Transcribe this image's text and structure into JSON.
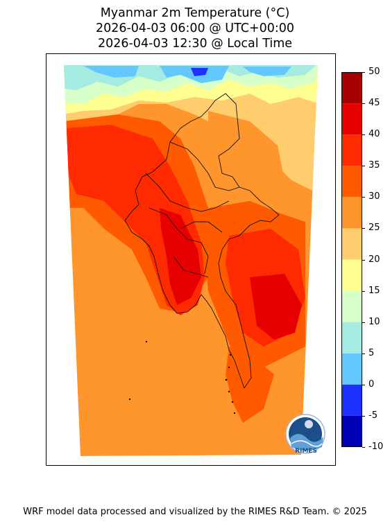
{
  "title": {
    "line1": "Myanmar 2m Temperature (°C)",
    "line2": "2026-04-03 06:00 @ UTC+00:00",
    "line3": "2026-04-03 12:30 @ Local Time"
  },
  "colorbar": {
    "ticks": [
      "50",
      "45",
      "40",
      "35",
      "30",
      "25",
      "20",
      "15",
      "10",
      "5",
      "0",
      "-5",
      "-10"
    ],
    "bins_top_to_bottom": [
      {
        "range": "45 to 50",
        "color": "#a50000"
      },
      {
        "range": "40 to 45",
        "color": "#e60000"
      },
      {
        "range": "35 to 40",
        "color": "#ff2a00"
      },
      {
        "range": "30 to 35",
        "color": "#ff5a00"
      },
      {
        "range": "25 to 30",
        "color": "#ff962d"
      },
      {
        "range": "20 to 25",
        "color": "#ffcd6e"
      },
      {
        "range": "15 to 20",
        "color": "#ffff91"
      },
      {
        "range": "10 to 15",
        "color": "#d7ffc8"
      },
      {
        "range": "5 to 10",
        "color": "#a5ebe1"
      },
      {
        "range": "0 to 5",
        "color": "#64c8ff"
      },
      {
        "range": "-5 to 0",
        "color": "#1e32ff"
      },
      {
        "range": "-10 to -5",
        "color": "#0000b4"
      }
    ]
  },
  "logo": {
    "text": "RIMES"
  },
  "footer": "WRF model data processed and visualized by the RIMES R&D Team. © 2025"
}
